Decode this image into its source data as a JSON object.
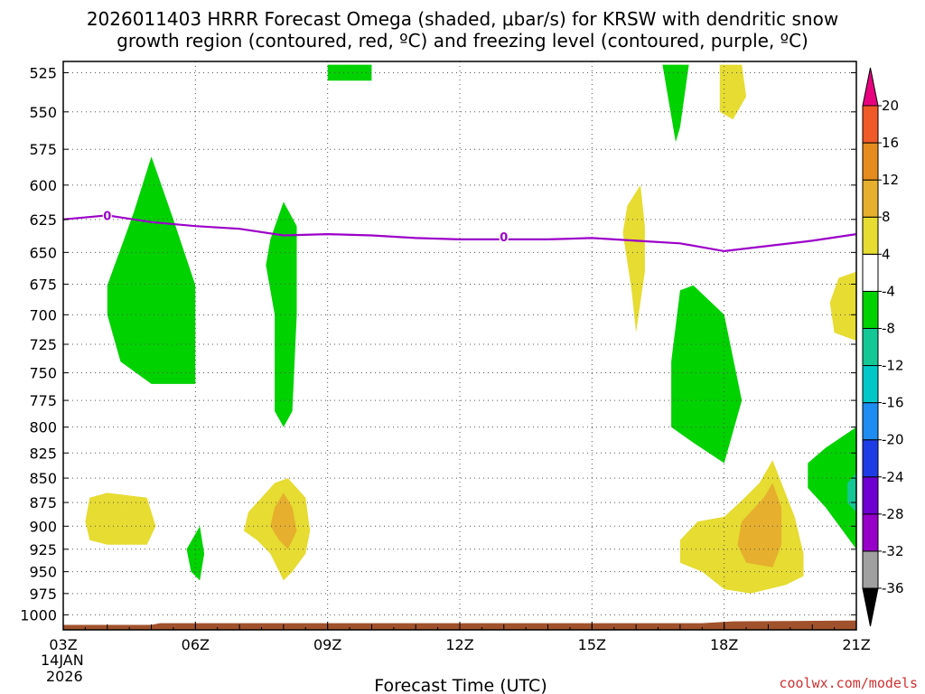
{
  "chart_data": {
    "type": "heatmap",
    "title_line1": "2026011403 HRRR Forecast Omega (shaded, μbar/s) for KRSW with dendritic snow",
    "title_line2": "growth region (contoured, red, ºC) and freezing level (contoured, purple, ºC)",
    "xlabel": "Forecast Time (UTC)",
    "date_label_line1": "14JAN",
    "date_label_line2": "2026",
    "credit": "coolwx.com/models",
    "x_range_hours": [
      3,
      21
    ],
    "x_ticks": [
      {
        "hour": 3,
        "label": "03Z"
      },
      {
        "hour": 6,
        "label": "06Z"
      },
      {
        "hour": 9,
        "label": "09Z"
      },
      {
        "hour": 12,
        "label": "12Z"
      },
      {
        "hour": 15,
        "label": "15Z"
      },
      {
        "hour": 18,
        "label": "18Z"
      },
      {
        "hour": 21,
        "label": "21Z"
      }
    ],
    "y_ticks": [
      {
        "p": 525,
        "label": "525"
      },
      {
        "p": 550,
        "label": "550"
      },
      {
        "p": 575,
        "label": "575"
      },
      {
        "p": 600,
        "label": "600"
      },
      {
        "p": 625,
        "label": "625"
      },
      {
        "p": 650,
        "label": "650"
      },
      {
        "p": 675,
        "label": "675"
      },
      {
        "p": 700,
        "label": "700"
      },
      {
        "p": 725,
        "label": "725"
      },
      {
        "p": 750,
        "label": "750"
      },
      {
        "p": 775,
        "label": "775"
      },
      {
        "p": 800,
        "label": "800"
      },
      {
        "p": 825,
        "label": "825"
      },
      {
        "p": 850,
        "label": "850"
      },
      {
        "p": 875,
        "label": "875"
      },
      {
        "p": 900,
        "label": "900"
      },
      {
        "p": 925,
        "label": "925"
      },
      {
        "p": 950,
        "label": "950"
      },
      {
        "p": 975,
        "label": "975"
      },
      {
        "p": 1000,
        "label": "1000"
      }
    ],
    "colorbar": {
      "colors": [
        "#a0a0a0",
        "#9600c8",
        "#6e00d2",
        "#1e3ce6",
        "#1e8cf0",
        "#00c8c8",
        "#14c896",
        "#00d200",
        "#ffffff",
        "#e6dc32",
        "#e6af2d",
        "#e68c1e",
        "#f05a28",
        "#f03232"
      ],
      "bounds": [
        -36,
        -32,
        -28,
        -24,
        -20,
        -16,
        -12,
        -8,
        -4,
        4,
        8,
        12,
        16,
        20
      ],
      "labels": [
        "-36",
        "-32",
        "-28",
        "-24",
        "-20",
        "-16",
        "-12",
        "-8",
        "-4",
        "4",
        "8",
        "12",
        "16",
        "20"
      ],
      "min_arrow_color": "#000000",
      "max_arrow_color": "#e6007e"
    },
    "freezing_level": {
      "label": "0",
      "label_points": [
        {
          "hour": 4.0,
          "p": 622
        },
        {
          "hour": 13.0,
          "p": 638
        }
      ],
      "points": [
        {
          "hour": 3.0,
          "p": 625
        },
        {
          "hour": 4.0,
          "p": 622
        },
        {
          "hour": 5.0,
          "p": 627
        },
        {
          "hour": 6.0,
          "p": 630
        },
        {
          "hour": 7.0,
          "p": 632
        },
        {
          "hour": 8.0,
          "p": 637
        },
        {
          "hour": 9.0,
          "p": 636
        },
        {
          "hour": 10.0,
          "p": 637
        },
        {
          "hour": 11.0,
          "p": 639
        },
        {
          "hour": 12.0,
          "p": 640
        },
        {
          "hour": 13.0,
          "p": 640
        },
        {
          "hour": 14.0,
          "p": 640
        },
        {
          "hour": 15.0,
          "p": 639
        },
        {
          "hour": 16.0,
          "p": 641
        },
        {
          "hour": 17.0,
          "p": 643
        },
        {
          "hour": 18.0,
          "p": 649
        },
        {
          "hour": 19.0,
          "p": 645
        },
        {
          "hour": 20.0,
          "p": 641
        },
        {
          "hour": 21.0,
          "p": 636
        }
      ]
    },
    "omega_regions": [
      {
        "value_bin": "-8 to -4",
        "color": "#00d200",
        "points": [
          [
            4.0,
            676
          ],
          [
            4.6,
            620
          ],
          [
            5.0,
            580
          ],
          [
            5.5,
            625
          ],
          [
            6.0,
            676
          ],
          [
            6.0,
            760
          ],
          [
            5.0,
            760
          ],
          [
            4.3,
            740
          ],
          [
            4.0,
            700
          ]
        ]
      },
      {
        "value_bin": "-8 to -4",
        "color": "#00d200",
        "points": [
          [
            7.7,
            640
          ],
          [
            8.0,
            612
          ],
          [
            8.3,
            630
          ],
          [
            8.3,
            700
          ],
          [
            8.2,
            785
          ],
          [
            8.0,
            800
          ],
          [
            7.8,
            785
          ],
          [
            7.8,
            700
          ],
          [
            7.6,
            660
          ]
        ]
      },
      {
        "value_bin": "-8 to -4",
        "color": "#00d200",
        "points": [
          [
            5.8,
            925
          ],
          [
            6.1,
            900
          ],
          [
            6.2,
            930
          ],
          [
            6.1,
            960
          ],
          [
            5.9,
            950
          ]
        ]
      },
      {
        "value_bin": "-8 to -4",
        "color": "#00d200",
        "points": [
          [
            17.0,
            680
          ],
          [
            17.3,
            676
          ],
          [
            18.0,
            700
          ],
          [
            18.4,
            775
          ],
          [
            18.0,
            835
          ],
          [
            17.3,
            815
          ],
          [
            16.8,
            800
          ],
          [
            16.8,
            740
          ]
        ]
      },
      {
        "value_bin": "-8 to -4",
        "color": "#00d200",
        "points": [
          [
            16.6,
            520
          ],
          [
            17.2,
            520
          ],
          [
            17.0,
            560
          ],
          [
            16.9,
            570
          ]
        ]
      },
      {
        "value_bin": "-8 to -4",
        "color": "#00d200",
        "points": [
          [
            9.0,
            520
          ],
          [
            10.0,
            520
          ],
          [
            10.0,
            530
          ],
          [
            9.0,
            530
          ]
        ]
      },
      {
        "value_bin": "-8 to -4",
        "color": "#00d200",
        "points": [
          [
            21.0,
            800
          ],
          [
            21.0,
            925
          ],
          [
            20.3,
            880
          ],
          [
            19.9,
            860
          ],
          [
            19.9,
            835
          ],
          [
            20.3,
            820
          ]
        ]
      },
      {
        "value_bin": "-12 to -8",
        "color": "#14c896",
        "points": [
          [
            21.0,
            845
          ],
          [
            20.8,
            855
          ],
          [
            20.8,
            875
          ],
          [
            21.0,
            885
          ]
        ]
      },
      {
        "value_bin": "4 to 8",
        "color": "#e6dc32",
        "points": [
          [
            3.6,
            870
          ],
          [
            4.0,
            865
          ],
          [
            4.9,
            870
          ],
          [
            5.1,
            900
          ],
          [
            4.9,
            920
          ],
          [
            4.0,
            920
          ],
          [
            3.6,
            915
          ],
          [
            3.5,
            895
          ]
        ]
      },
      {
        "value_bin": "4 to 8",
        "color": "#e6dc32",
        "points": [
          [
            7.4,
            875
          ],
          [
            7.8,
            855
          ],
          [
            8.1,
            850
          ],
          [
            8.5,
            870
          ],
          [
            8.6,
            905
          ],
          [
            8.5,
            930
          ],
          [
            8.2,
            950
          ],
          [
            8.0,
            960
          ],
          [
            7.7,
            930
          ],
          [
            7.4,
            915
          ],
          [
            7.1,
            905
          ],
          [
            7.2,
            885
          ]
        ]
      },
      {
        "value_bin": "4 to 8",
        "color": "#e6dc32",
        "points": [
          [
            15.8,
            615
          ],
          [
            16.1,
            600
          ],
          [
            16.2,
            630
          ],
          [
            16.2,
            665
          ],
          [
            16.0,
            715
          ],
          [
            15.9,
            680
          ],
          [
            15.7,
            635
          ]
        ]
      },
      {
        "value_bin": "4 to 8",
        "color": "#e6dc32",
        "points": [
          [
            17.9,
            520
          ],
          [
            18.4,
            520
          ],
          [
            18.5,
            540
          ],
          [
            18.2,
            555
          ],
          [
            17.9,
            550
          ]
        ]
      },
      {
        "value_bin": "4 to 8",
        "color": "#e6dc32",
        "points": [
          [
            21.0,
            665
          ],
          [
            20.6,
            670
          ],
          [
            20.4,
            690
          ],
          [
            20.5,
            715
          ],
          [
            21.0,
            722
          ]
        ]
      },
      {
        "value_bin": "4 to 8",
        "color": "#e6dc32",
        "points": [
          [
            17.4,
            895
          ],
          [
            18.0,
            890
          ],
          [
            18.4,
            873
          ],
          [
            18.8,
            855
          ],
          [
            19.1,
            832
          ],
          [
            19.6,
            890
          ],
          [
            19.8,
            930
          ],
          [
            19.8,
            955
          ],
          [
            19.4,
            965
          ],
          [
            18.6,
            975
          ],
          [
            18.0,
            970
          ],
          [
            17.5,
            950
          ],
          [
            17.0,
            940
          ],
          [
            17.0,
            915
          ]
        ]
      },
      {
        "value_bin": "8 to 12",
        "color": "#e6af2d",
        "points": [
          [
            7.8,
            880
          ],
          [
            8.0,
            865
          ],
          [
            8.2,
            880
          ],
          [
            8.3,
            905
          ],
          [
            8.1,
            925
          ],
          [
            7.9,
            915
          ],
          [
            7.7,
            900
          ]
        ]
      },
      {
        "value_bin": "8 to 12",
        "color": "#e6af2d",
        "points": [
          [
            18.9,
            870
          ],
          [
            19.1,
            855
          ],
          [
            19.3,
            880
          ],
          [
            19.3,
            920
          ],
          [
            19.1,
            945
          ],
          [
            18.5,
            940
          ],
          [
            18.3,
            920
          ],
          [
            18.4,
            895
          ]
        ]
      }
    ],
    "ground_surface": {
      "color": "#a0522d",
      "top_p_start": 1012,
      "top_p_end": 1010
    }
  }
}
